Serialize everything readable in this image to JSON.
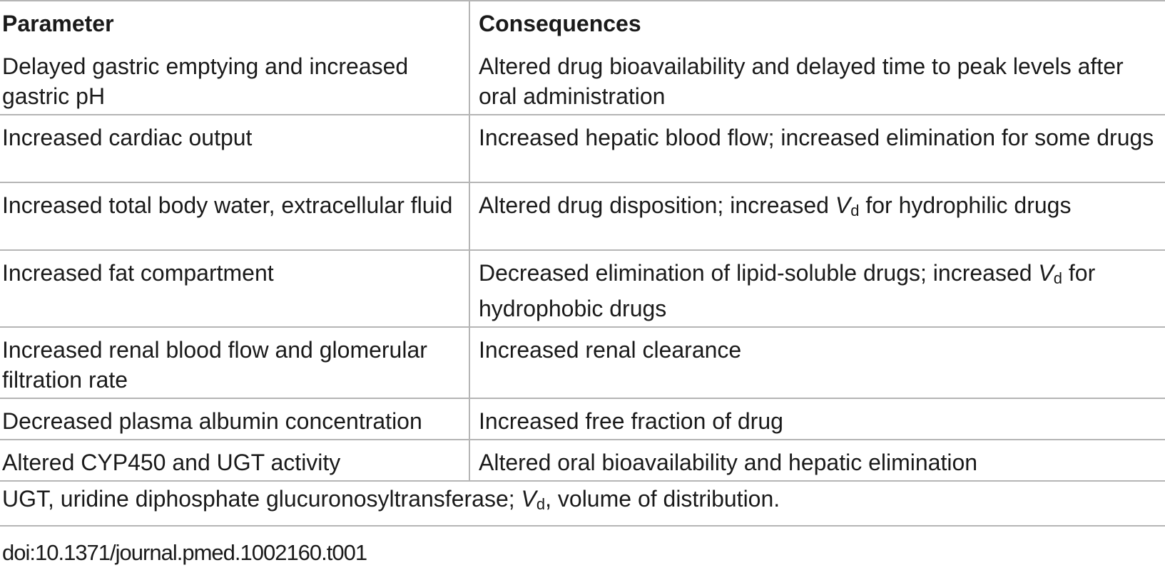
{
  "table": {
    "headers": [
      "Parameter",
      "Consequences"
    ],
    "rows": [
      {
        "parameter": "Delayed gastric emptying and increased gastric pH",
        "consequence": "Altered drug bioavailability and delayed time to peak levels after oral administration"
      },
      {
        "parameter": "Increased cardiac output",
        "consequence": "Increased hepatic blood flow; increased elimination for some drugs"
      },
      {
        "parameter": "Increased total body water, extracellular fluid",
        "consequence_pre": "Altered drug disposition; increased ",
        "vd_symbol": "V",
        "vd_subscript": "d",
        "consequence_post": " for hydrophilic drugs"
      },
      {
        "parameter": "Increased fat compartment",
        "consequence_pre": "Decreased elimination of lipid-soluble drugs; increased ",
        "vd_symbol": "V",
        "vd_subscript": "d",
        "consequence_post": " for hydrophobic drugs"
      },
      {
        "parameter": "Increased renal blood flow and glomerular filtration rate",
        "consequence": "Increased renal clearance"
      },
      {
        "parameter": "Decreased plasma albumin concentration",
        "consequence": "Increased free fraction of drug"
      },
      {
        "parameter": "Altered CYP450 and UGT activity",
        "consequence": "Altered oral bioavailability and hepatic elimination"
      }
    ]
  },
  "footnote": {
    "pre": "UGT, uridine diphosphate glucuronosyltransferase; ",
    "vd_symbol": "V",
    "vd_subscript": "d",
    "post": ", volume of distribution."
  },
  "doi": "doi:10.1371/journal.pmed.1002160.t001"
}
